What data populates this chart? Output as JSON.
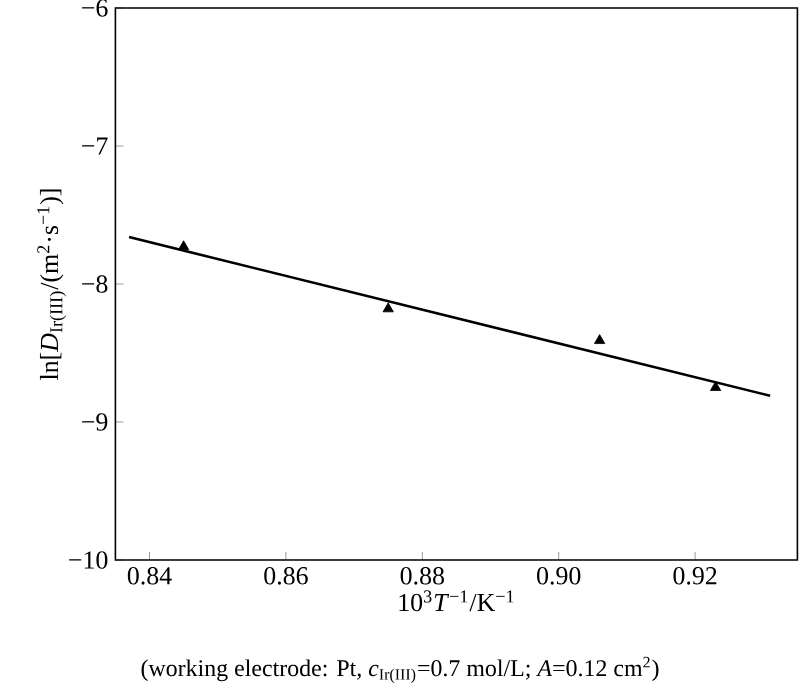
{
  "chart_data": {
    "type": "scatter",
    "xlabel": "10$^{3}$*T*$^{−1}$/K$^{−1}$",
    "ylabel": "ln[*D*$_{Ir(III)}$/(m$^{2}$·s$^{−1}$)]",
    "annotations": [
      "(working electrode: Pt, *c*$_{Ir(III)}$=0.7 mol/L; *A*=0.12 cm$^{2}$)"
    ],
    "xlim": [
      0.835,
      0.935
    ],
    "ylim": [
      -10,
      -6
    ],
    "xticks": [
      0.84,
      0.86,
      0.88,
      {
        "value": 0.9,
        "label": "0.90"
      },
      0.92
    ],
    "yticks": [
      {
        "value": -10,
        "label": "−10"
      },
      {
        "value": -9,
        "label": "−9"
      },
      {
        "value": -8,
        "label": "−8"
      },
      {
        "value": -7,
        "label": "−7"
      },
      {
        "value": -6,
        "label": "−6"
      }
    ],
    "grid": false,
    "marker": "triangle",
    "series": [
      {
        "color": "#000000",
        "x": [
          0.845,
          0.875,
          0.906,
          0.923
        ],
        "values": [
          -7.73,
          -8.18,
          -8.41,
          -8.75
        ]
      },
      {
        "type": "line",
        "color": "#000000",
        "marker": "none",
        "line_style": "solid",
        "x": [
          0.837,
          0.931
        ],
        "values": [
          -7.66,
          -8.81
        ]
      }
    ]
  }
}
